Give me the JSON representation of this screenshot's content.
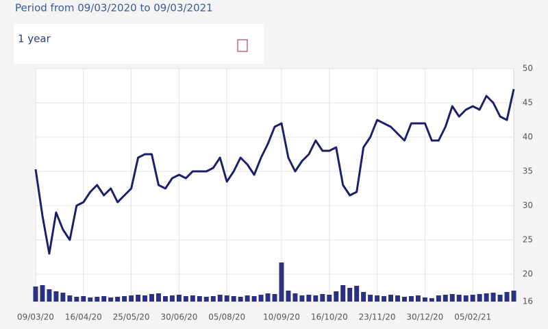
{
  "chart_data": {
    "type": "line",
    "title": "Period from 09/03/2020 to 09/03/2021",
    "range_label": "1 year",
    "categories": [
      "09/03/20",
      null,
      null,
      null,
      null,
      null,
      null,
      "16/04/20",
      null,
      null,
      null,
      null,
      null,
      null,
      "25/05/20",
      null,
      null,
      null,
      null,
      null,
      null,
      "30/06/20",
      null,
      null,
      null,
      null,
      null,
      null,
      "05/08/20",
      null,
      null,
      null,
      null,
      null,
      null,
      null,
      "10/09/20",
      null,
      null,
      null,
      null,
      null,
      null,
      "16/10/20",
      null,
      null,
      null,
      null,
      null,
      null,
      "23/11/20",
      null,
      null,
      null,
      null,
      null,
      null,
      "30/12/20",
      null,
      null,
      null,
      null,
      null,
      null,
      "05/02/21",
      null,
      null,
      null,
      null,
      null,
      null
    ],
    "series": [
      {
        "type": "line",
        "color": "#1b1f6b",
        "values": [
          35.3,
          28.5,
          23,
          29,
          26.5,
          25,
          30,
          30.5,
          32,
          33,
          31.5,
          32.5,
          30.5,
          31.5,
          32.5,
          37,
          37.5,
          37.5,
          33,
          32.5,
          34,
          34.5,
          34,
          35,
          35,
          35,
          35.5,
          37,
          33.5,
          35,
          37,
          36,
          34.5,
          37,
          39,
          41.5,
          42,
          37,
          35,
          36.5,
          37.5,
          39.5,
          38,
          38,
          38.5,
          33,
          31.5,
          32,
          38.5,
          40,
          42.5,
          42,
          41.5,
          40.5,
          39.5,
          42,
          42,
          42,
          39.5,
          39.5,
          41.5,
          44.5,
          43,
          44,
          44.5,
          44,
          46,
          45,
          43,
          42.5,
          47
        ]
      },
      {
        "type": "bar",
        "color": "#2b3182",
        "values": [
          18.2,
          18.4,
          17.8,
          17.5,
          17.3,
          16.9,
          16.7,
          16.8,
          16.6,
          16.7,
          16.8,
          16.6,
          16.7,
          16.8,
          16.9,
          17.0,
          16.9,
          17.1,
          17.2,
          16.8,
          16.9,
          17.0,
          16.8,
          16.9,
          16.8,
          16.7,
          16.8,
          17.0,
          16.9,
          16.8,
          16.7,
          16.9,
          16.8,
          17.0,
          17.2,
          17.1,
          21.7,
          17.6,
          17.2,
          16.9,
          17.0,
          16.9,
          17.1,
          17.0,
          17.5,
          18.4,
          18.0,
          18.3,
          17.4,
          17.0,
          16.9,
          16.8,
          17.0,
          16.9,
          16.7,
          16.8,
          16.9,
          16.6,
          16.5,
          16.9,
          17.0,
          17.1,
          17.0,
          16.9,
          17.0,
          17.1,
          17.2,
          17.3,
          17.0,
          17.4,
          17.6
        ]
      }
    ],
    "ylim": [
      16,
      50
    ],
    "yticks": [
      16,
      20,
      25,
      30,
      35,
      40,
      45,
      50
    ],
    "grid": true
  }
}
